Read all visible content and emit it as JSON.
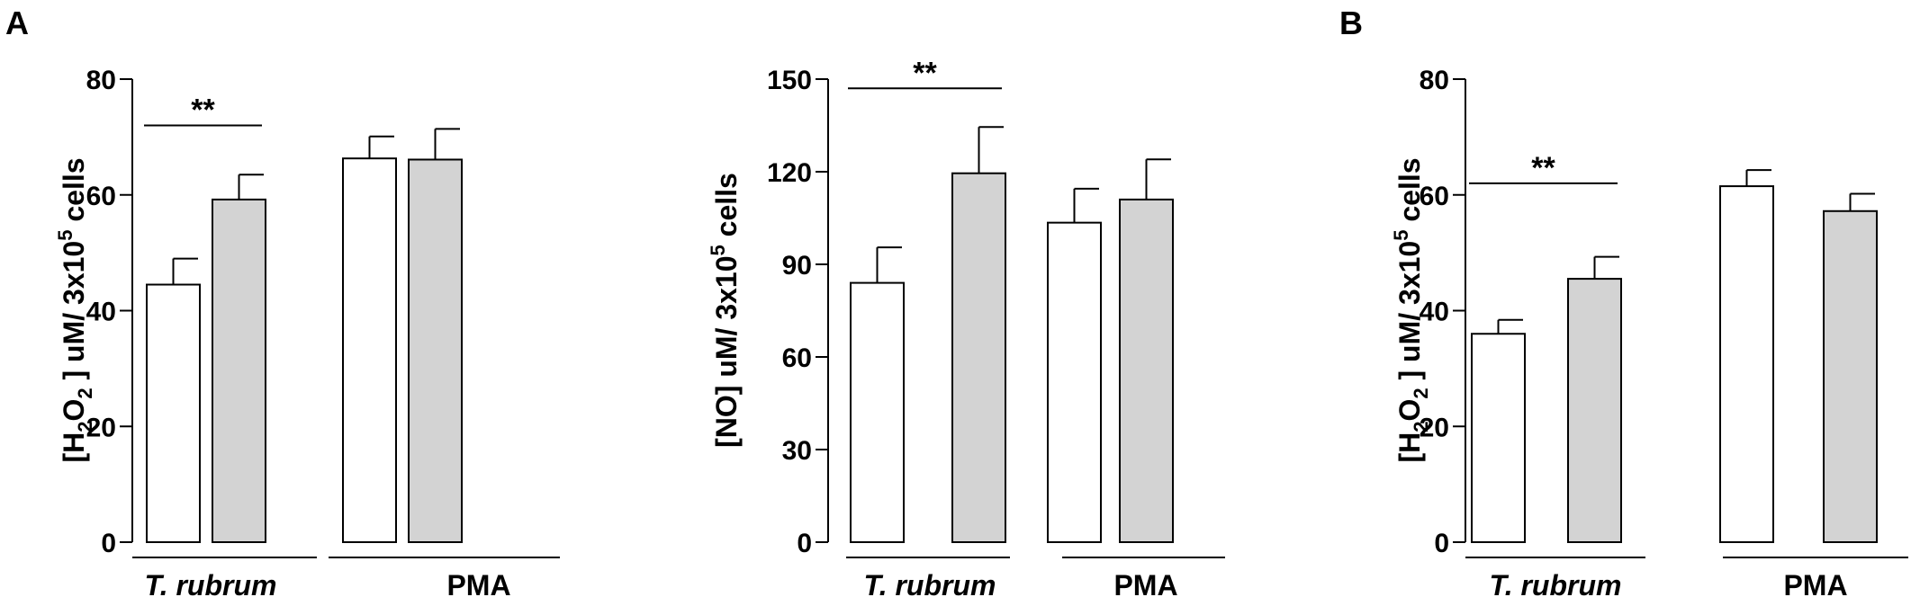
{
  "panel_letters": [
    "A",
    "B"
  ],
  "chart_data": [
    {
      "type": "bar",
      "ylabel_parts": [
        "[H",
        "2",
        "O",
        "2",
        " ] uM/ 3x10",
        "5",
        " cells"
      ],
      "ylim": [
        0,
        80
      ],
      "yticks": [
        0,
        20,
        40,
        60,
        80
      ],
      "groups": [
        {
          "label": "T. rubrum",
          "italic": true
        },
        {
          "label": "PMA",
          "italic": false
        }
      ],
      "bars": [
        {
          "value": 44.5,
          "error": 4.5,
          "fill": "#ffffff"
        },
        {
          "value": 59.2,
          "error": 4.3,
          "fill": "#d3d3d3"
        },
        {
          "value": 66.3,
          "error": 3.8,
          "fill": "#ffffff"
        },
        {
          "value": 66.1,
          "error": 5.3,
          "fill": "#d3d3d3"
        }
      ],
      "significance": {
        "label": "**",
        "from_bar": 0,
        "to_bar": 1,
        "y": 72
      }
    },
    {
      "type": "bar",
      "ylabel_parts": [
        "[NO] uM/ 3x10",
        "5",
        " cells"
      ],
      "ylim": [
        0,
        150
      ],
      "yticks": [
        0,
        30,
        60,
        90,
        120,
        150
      ],
      "groups": [
        {
          "label": "T. rubrum",
          "italic": true
        },
        {
          "label": "PMA",
          "italic": false
        }
      ],
      "bars": [
        {
          "value": 84,
          "error": 11.5,
          "fill": "#ffffff"
        },
        {
          "value": 119.5,
          "error": 15,
          "fill": "#d3d3d3"
        },
        {
          "value": 103.5,
          "error": 11,
          "fill": "#ffffff"
        },
        {
          "value": 111,
          "error": 13,
          "fill": "#d3d3d3"
        }
      ],
      "significance": {
        "label": "**",
        "from_bar": 0,
        "to_bar": 1,
        "y": 147
      }
    },
    {
      "type": "bar",
      "ylabel_parts": [
        "[H",
        "2",
        "O",
        "2",
        " ] uM/ 3x10",
        "5",
        " cells"
      ],
      "ylim": [
        0,
        80
      ],
      "yticks": [
        0,
        20,
        40,
        60,
        80
      ],
      "groups": [
        {
          "label": "T. rubrum",
          "italic": true
        },
        {
          "label": "PMA",
          "italic": false
        }
      ],
      "bars": [
        {
          "value": 36,
          "error": 2.4,
          "fill": "#ffffff"
        },
        {
          "value": 45.5,
          "error": 3.8,
          "fill": "#d3d3d3"
        },
        {
          "value": 61.5,
          "error": 2.8,
          "fill": "#ffffff"
        },
        {
          "value": 57.2,
          "error": 3,
          "fill": "#d3d3d3"
        }
      ],
      "significance": {
        "label": "**",
        "from_bar": 0,
        "to_bar": 1,
        "y": 62
      }
    }
  ]
}
